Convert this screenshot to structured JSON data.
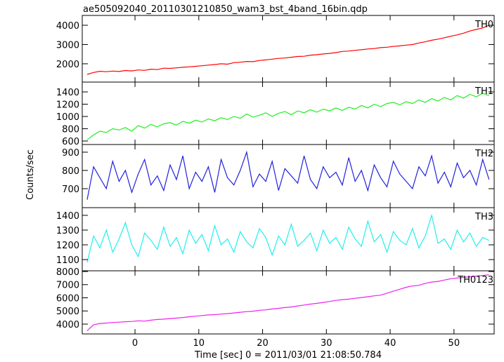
{
  "chart_data": {
    "type": "line",
    "title": "ae505092040_20110301210850_wam3_bst_4band_16bin.qdp",
    "ylabel": "Counts/sec",
    "xlabel": "Time [sec] 0 = 2011/03/01 21:08:50.784",
    "xlim": [
      -8.27,
      56.3
    ],
    "xticks": [
      0,
      10,
      20,
      30,
      40,
      50
    ],
    "x": [
      -7.5,
      -6.5,
      -5.5,
      -4.5,
      -3.5,
      -2.5,
      -1.5,
      -0.5,
      0.5,
      1.5,
      2.5,
      3.5,
      4.5,
      5.5,
      6.5,
      7.5,
      8.5,
      9.5,
      10.5,
      11.5,
      12.5,
      13.5,
      14.5,
      15.5,
      16.5,
      17.5,
      18.5,
      19.5,
      20.5,
      21.5,
      22.5,
      23.5,
      24.5,
      25.5,
      26.5,
      27.5,
      28.5,
      29.5,
      30.5,
      31.5,
      32.5,
      33.5,
      34.5,
      35.5,
      36.5,
      37.5,
      38.5,
      39.5,
      40.5,
      41.5,
      42.5,
      43.5,
      44.5,
      45.5,
      46.5,
      47.5,
      48.5,
      49.5,
      50.5,
      51.5,
      52.5,
      53.5,
      54.5,
      55.5
    ],
    "series": [
      {
        "name": "TH0",
        "color": "#ff0000",
        "ylim": [
          1050,
          4510
        ],
        "yticks": [
          2000,
          3000,
          4000
        ],
        "values": [
          1450,
          1550,
          1610,
          1590,
          1620,
          1600,
          1650,
          1630,
          1680,
          1660,
          1720,
          1700,
          1770,
          1760,
          1790,
          1820,
          1840,
          1870,
          1900,
          1930,
          1960,
          2000,
          1980,
          2060,
          2080,
          2120,
          2110,
          2170,
          2200,
          2240,
          2280,
          2300,
          2340,
          2380,
          2390,
          2450,
          2470,
          2510,
          2540,
          2580,
          2640,
          2660,
          2700,
          2730,
          2770,
          2790,
          2840,
          2860,
          2900,
          2930,
          2970,
          3000,
          3080,
          3140,
          3220,
          3280,
          3350,
          3430,
          3500,
          3590,
          3700,
          3780,
          3860,
          4000
        ]
      },
      {
        "name": "TH1",
        "color": "#22ee22",
        "ylim": [
          543,
          1560
        ],
        "yticks": [
          600,
          800,
          1000,
          1200,
          1400
        ],
        "values": [
          620,
          700,
          760,
          740,
          800,
          780,
          820,
          760,
          850,
          810,
          870,
          830,
          880,
          900,
          860,
          920,
          890,
          940,
          910,
          960,
          930,
          980,
          950,
          1000,
          970,
          1040,
          990,
          1020,
          1060,
          1000,
          1050,
          1080,
          1030,
          1090,
          1060,
          1110,
          1070,
          1120,
          1090,
          1140,
          1100,
          1150,
          1120,
          1180,
          1140,
          1200,
          1160,
          1210,
          1230,
          1190,
          1240,
          1210,
          1270,
          1230,
          1290,
          1250,
          1310,
          1270,
          1340,
          1300,
          1360,
          1320,
          1380,
          1340
        ]
      },
      {
        "name": "TH2",
        "color": "#2222dd",
        "ylim": [
          596,
          942
        ],
        "yticks": [
          700,
          800,
          900
        ],
        "values": [
          640,
          820,
          760,
          700,
          850,
          740,
          800,
          680,
          780,
          860,
          720,
          770,
          690,
          830,
          750,
          880,
          700,
          790,
          740,
          820,
          680,
          860,
          760,
          720,
          800,
          900,
          710,
          780,
          740,
          850,
          690,
          810,
          770,
          730,
          880,
          750,
          700,
          820,
          760,
          790,
          720,
          870,
          740,
          800,
          690,
          830,
          760,
          710,
          850,
          780,
          740,
          700,
          820,
          770,
          880,
          730,
          790,
          710,
          840,
          760,
          800,
          720,
          860,
          750
        ]
      },
      {
        "name": "TH3",
        "color": "#22eeee",
        "ylim": [
          1024,
          1452
        ],
        "yticks": [
          1100,
          1200,
          1300,
          1400
        ],
        "values": [
          1080,
          1260,
          1180,
          1300,
          1150,
          1240,
          1350,
          1200,
          1120,
          1280,
          1230,
          1170,
          1320,
          1190,
          1250,
          1140,
          1300,
          1210,
          1270,
          1160,
          1330,
          1200,
          1240,
          1150,
          1290,
          1220,
          1180,
          1310,
          1250,
          1130,
          1260,
          1200,
          1340,
          1190,
          1230,
          1280,
          1160,
          1300,
          1210,
          1250,
          1170,
          1320,
          1240,
          1190,
          1360,
          1220,
          1270,
          1150,
          1290,
          1230,
          1200,
          1310,
          1180,
          1260,
          1400,
          1210,
          1240,
          1170,
          1300,
          1220,
          1280,
          1190,
          1250,
          1230
        ]
      },
      {
        "name": "TH0123",
        "color": "#ee22ee",
        "ylim": [
          3253,
          8053
        ],
        "yticks": [
          4000,
          5000,
          6000,
          7000,
          8000
        ],
        "values": [
          3500,
          3950,
          4050,
          4080,
          4120,
          4150,
          4180,
          4200,
          4250,
          4230,
          4300,
          4350,
          4380,
          4420,
          4460,
          4500,
          4560,
          4600,
          4650,
          4700,
          4720,
          4760,
          4800,
          4850,
          4900,
          4950,
          4980,
          5050,
          5080,
          5150,
          5200,
          5260,
          5300,
          5380,
          5450,
          5520,
          5580,
          5650,
          5720,
          5800,
          5860,
          5900,
          5960,
          6020,
          6080,
          6150,
          6200,
          6350,
          6500,
          6650,
          6800,
          6900,
          6950,
          7100,
          7200,
          7250,
          7350,
          7450,
          7500,
          7550,
          7600,
          7650,
          7700,
          7750
        ]
      }
    ]
  }
}
